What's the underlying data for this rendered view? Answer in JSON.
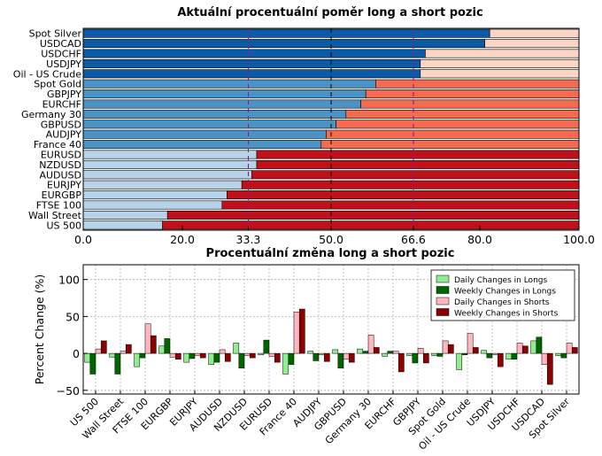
{
  "chart_data": [
    {
      "type": "bar",
      "orientation": "horizontal",
      "stacked": true,
      "title": "Aktuální procentuální poměr long a short pozic",
      "categories": [
        "Spot Silver",
        "USDCAD",
        "USDCHF",
        "USDJPY",
        "Oil - US Crude",
        "Spot Gold",
        "GBPJPY",
        "EURCHF",
        "Germany 30",
        "GBPUSD",
        "AUDJPY",
        "France 40",
        "EURUSD",
        "NZDUSD",
        "AUDUSD",
        "EURJPY",
        "EURGBP",
        "FTSE 100",
        "Wall Street",
        "US 500"
      ],
      "series": [
        {
          "values": [
            82,
            81,
            69,
            68,
            68,
            59,
            57,
            56,
            53,
            51,
            49,
            48,
            35,
            35,
            34,
            32,
            29,
            28,
            17,
            16
          ]
        },
        {
          "values": [
            18,
            19,
            31,
            32,
            32,
            41,
            43,
            44,
            47,
            49,
            51,
            52,
            65,
            65,
            66,
            68,
            71,
            72,
            83,
            84
          ]
        }
      ],
      "xlim": [
        0,
        100
      ],
      "xticks": [
        "0.0",
        "20.0",
        "33.3",
        "50.0",
        "66.6",
        "80.0",
        "100.0"
      ],
      "reference_lines": [
        33.3,
        50.0,
        66.6
      ],
      "colors": {
        "long_dark": "#0b5aa8",
        "long_mid": "#4b93c7",
        "long_light": "#b6d3ea",
        "short_light": "#fdd5c4",
        "short_mid": "#f46b4f",
        "short_dark": "#c0111b",
        "accent_tick": "#8c1a8c"
      }
    },
    {
      "type": "bar",
      "title": "Procentuální změna long a short pozic",
      "ylabel": "Percent Change (%)",
      "ylim": [
        -55,
        120
      ],
      "yticks": [
        "100",
        "50",
        "0",
        "−50"
      ],
      "categories": [
        "US 500",
        "Wall Street",
        "FTSE 100",
        "EURGBP",
        "EURJPY",
        "AUDUSD",
        "NZDUSD",
        "EURUSD",
        "France 40",
        "AUDJPY",
        "GBPUSD",
        "Germany 30",
        "EURCHF",
        "GBPJPY",
        "Spot Gold",
        "Oil - US Crude",
        "USDJPY",
        "USDCHF",
        "USDCAD",
        "Spot Silver"
      ],
      "series": [
        {
          "name": "Daily Changes in Longs",
          "color": "#90ee90",
          "values": [
            -12,
            -5,
            -18,
            10,
            -12,
            -15,
            14,
            -2,
            -28,
            3,
            5,
            6,
            -4,
            -3,
            -3,
            -22,
            4,
            -8,
            17,
            -3
          ]
        },
        {
          "name": "Weekly Changes in Longs",
          "color": "#006400",
          "values": [
            -28,
            -28,
            -6,
            20,
            -7,
            -12,
            -20,
            18,
            -15,
            -10,
            -20,
            3,
            3,
            -13,
            -4,
            -2,
            -6,
            -8,
            22,
            -6
          ]
        },
        {
          "name": "Daily Changes in Shorts",
          "color": "#ffb6c1",
          "values": [
            6,
            3,
            40,
            -5,
            -3,
            5,
            -3,
            -4,
            56,
            -2,
            -8,
            25,
            3,
            7,
            17,
            27,
            -2,
            14,
            -15,
            14
          ]
        },
        {
          "name": "Weekly Changes in Shorts",
          "color": "#8b0000",
          "values": [
            17,
            12,
            24,
            -8,
            -6,
            -11,
            -6,
            -12,
            60,
            -11,
            -12,
            8,
            -25,
            -13,
            12,
            8,
            -18,
            10,
            -42,
            8
          ]
        }
      ]
    }
  ]
}
